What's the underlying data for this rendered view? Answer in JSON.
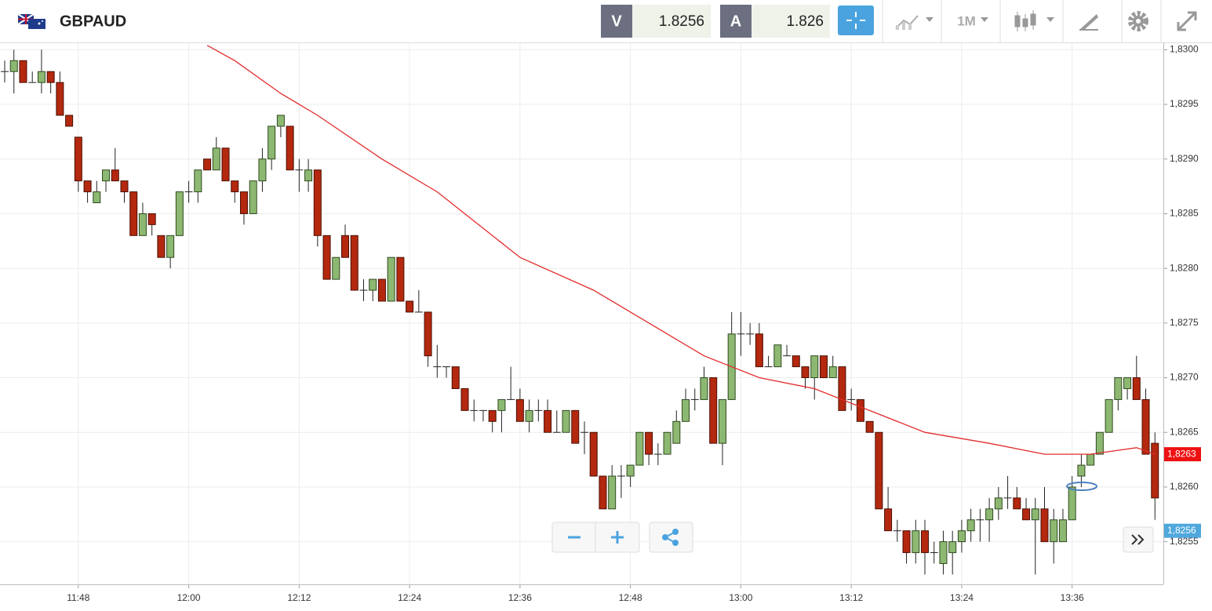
{
  "header": {
    "symbol": "GBPAUD",
    "bid_label": "V",
    "bid": 1.8256,
    "ask_label": "A",
    "ask": 1.826,
    "timeframe": "1M"
  },
  "chart_data": {
    "type": "candlestick",
    "x": [
      "11:40",
      "11:41",
      "11:42",
      "11:43",
      "11:44",
      "11:45",
      "11:46",
      "11:47",
      "11:48",
      "11:49",
      "11:50",
      "11:51",
      "11:52",
      "11:53",
      "11:54",
      "11:55",
      "11:56",
      "11:57",
      "11:58",
      "11:59",
      "12:00",
      "12:01",
      "12:02",
      "12:03",
      "12:04",
      "12:05",
      "12:06",
      "12:07",
      "12:08",
      "12:09",
      "12:10",
      "12:11",
      "12:12",
      "12:13",
      "12:14",
      "12:15",
      "12:16",
      "12:17",
      "12:18",
      "12:19",
      "12:20",
      "12:21",
      "12:22",
      "12:23",
      "12:24",
      "12:25",
      "12:26",
      "12:27",
      "12:28",
      "12:29",
      "12:30",
      "12:31",
      "12:32",
      "12:33",
      "12:34",
      "12:35",
      "12:36",
      "12:37",
      "12:38",
      "12:39",
      "12:40",
      "12:41",
      "12:42",
      "12:43",
      "12:44",
      "12:45",
      "12:46",
      "12:47",
      "12:48",
      "12:49",
      "12:50",
      "12:51",
      "12:52",
      "12:53",
      "12:54",
      "12:55",
      "12:56",
      "12:57",
      "12:58",
      "12:59",
      "13:00",
      "13:01",
      "13:02",
      "13:03",
      "13:04",
      "13:05",
      "13:06",
      "13:07",
      "13:08",
      "13:09",
      "13:10",
      "13:11",
      "13:12",
      "13:13",
      "13:14",
      "13:15",
      "13:16",
      "13:17",
      "13:18",
      "13:19",
      "13:20",
      "13:21",
      "13:22",
      "13:23",
      "13:24",
      "13:25",
      "13:26",
      "13:27",
      "13:28",
      "13:29",
      "13:30",
      "13:31",
      "13:32",
      "13:33",
      "13:34",
      "13:35",
      "13:36",
      "13:37",
      "13:38",
      "13:39",
      "13:40",
      "13:41",
      "13:42",
      "13:43",
      "13:44",
      "13:45"
    ],
    "ohlc": [
      [
        1.8298,
        1.8299,
        1.8297,
        1.8298
      ],
      [
        1.8298,
        1.83,
        1.8296,
        1.8299
      ],
      [
        1.8299,
        1.8299,
        1.8297,
        1.8297
      ],
      [
        1.8297,
        1.8298,
        1.8297,
        1.8297
      ],
      [
        1.8297,
        1.83,
        1.8296,
        1.8298
      ],
      [
        1.8298,
        1.8298,
        1.8296,
        1.8297
      ],
      [
        1.8297,
        1.8298,
        1.8294,
        1.8294
      ],
      [
        1.8294,
        1.8294,
        1.8293,
        1.8293
      ],
      [
        1.8292,
        1.8292,
        1.8287,
        1.8288
      ],
      [
        1.8288,
        1.8288,
        1.8286,
        1.8287
      ],
      [
        1.8286,
        1.8288,
        1.8286,
        1.8287
      ],
      [
        1.8288,
        1.8289,
        1.8287,
        1.8289
      ],
      [
        1.8289,
        1.8291,
        1.8288,
        1.8288
      ],
      [
        1.8288,
        1.8288,
        1.8286,
        1.8287
      ],
      [
        1.8287,
        1.8287,
        1.8283,
        1.8283
      ],
      [
        1.8283,
        1.8286,
        1.8283,
        1.8285
      ],
      [
        1.8285,
        1.8285,
        1.8283,
        1.8284
      ],
      [
        1.8283,
        1.8283,
        1.8281,
        1.8281
      ],
      [
        1.8281,
        1.8283,
        1.828,
        1.8283
      ],
      [
        1.8283,
        1.8287,
        1.8283,
        1.8287
      ],
      [
        1.8287,
        1.8288,
        1.8286,
        1.8287
      ],
      [
        1.8287,
        1.8289,
        1.8286,
        1.8289
      ],
      [
        1.829,
        1.829,
        1.8289,
        1.8289
      ],
      [
        1.8289,
        1.8292,
        1.8289,
        1.8291
      ],
      [
        1.8291,
        1.8291,
        1.8288,
        1.8288
      ],
      [
        1.8288,
        1.8288,
        1.8286,
        1.8287
      ],
      [
        1.8287,
        1.8287,
        1.8284,
        1.8285
      ],
      [
        1.8285,
        1.8288,
        1.8285,
        1.8288
      ],
      [
        1.8288,
        1.8291,
        1.8287,
        1.829
      ],
      [
        1.829,
        1.8293,
        1.8289,
        1.8293
      ],
      [
        1.8293,
        1.8294,
        1.8292,
        1.8294
      ],
      [
        1.8293,
        1.8293,
        1.8289,
        1.8289
      ],
      [
        1.8289,
        1.829,
        1.8287,
        1.8289
      ],
      [
        1.8288,
        1.829,
        1.8287,
        1.8289
      ],
      [
        1.8289,
        1.8289,
        1.8282,
        1.8283
      ],
      [
        1.8283,
        1.8283,
        1.8279,
        1.8279
      ],
      [
        1.8279,
        1.8281,
        1.8279,
        1.8281
      ],
      [
        1.8283,
        1.8284,
        1.8281,
        1.8281
      ],
      [
        1.8283,
        1.8283,
        1.8278,
        1.8278
      ],
      [
        1.8278,
        1.8279,
        1.8277,
        1.8278
      ],
      [
        1.8278,
        1.8279,
        1.8277,
        1.8279
      ],
      [
        1.8279,
        1.8279,
        1.8277,
        1.8277
      ],
      [
        1.8277,
        1.8281,
        1.8277,
        1.8281
      ],
      [
        1.8281,
        1.8281,
        1.8277,
        1.8277
      ],
      [
        1.8277,
        1.8277,
        1.8276,
        1.8276
      ],
      [
        1.8276,
        1.8278,
        1.8276,
        1.8276
      ],
      [
        1.8276,
        1.8276,
        1.8271,
        1.8272
      ],
      [
        1.8271,
        1.8273,
        1.827,
        1.8271
      ],
      [
        1.8271,
        1.8271,
        1.827,
        1.8271
      ],
      [
        1.8271,
        1.8271,
        1.8269,
        1.8269
      ],
      [
        1.8269,
        1.8269,
        1.8267,
        1.8267
      ],
      [
        1.8267,
        1.8268,
        1.8266,
        1.8267
      ],
      [
        1.8267,
        1.8267,
        1.8266,
        1.8267
      ],
      [
        1.8267,
        1.8267,
        1.8265,
        1.8266
      ],
      [
        1.8267,
        1.8268,
        1.8265,
        1.8268
      ],
      [
        1.8268,
        1.8271,
        1.8268,
        1.8268
      ],
      [
        1.8268,
        1.8269,
        1.8266,
        1.8266
      ],
      [
        1.8266,
        1.8268,
        1.8265,
        1.8267
      ],
      [
        1.8267,
        1.8268,
        1.8266,
        1.8267
      ],
      [
        1.8267,
        1.8268,
        1.8265,
        1.8265
      ],
      [
        1.8265,
        1.8267,
        1.8265,
        1.8265
      ],
      [
        1.8265,
        1.8267,
        1.8265,
        1.8267
      ],
      [
        1.8267,
        1.8267,
        1.8264,
        1.8264
      ],
      [
        1.8265,
        1.8266,
        1.8263,
        1.8265
      ],
      [
        1.8265,
        1.8265,
        1.8261,
        1.8261
      ],
      [
        1.8261,
        1.8261,
        1.8258,
        1.8258
      ],
      [
        1.8258,
        1.8262,
        1.8258,
        1.8261
      ],
      [
        1.8261,
        1.8262,
        1.8259,
        1.8261
      ],
      [
        1.8261,
        1.8262,
        1.826,
        1.8262
      ],
      [
        1.8262,
        1.8265,
        1.8262,
        1.8265
      ],
      [
        1.8265,
        1.8265,
        1.8262,
        1.8263
      ],
      [
        1.8263,
        1.8264,
        1.8262,
        1.8263
      ],
      [
        1.8263,
        1.8265,
        1.8263,
        1.8265
      ],
      [
        1.8264,
        1.8267,
        1.8264,
        1.8266
      ],
      [
        1.8266,
        1.8269,
        1.8266,
        1.8268
      ],
      [
        1.8268,
        1.8269,
        1.8267,
        1.8268
      ],
      [
        1.8268,
        1.8271,
        1.8268,
        1.827
      ],
      [
        1.827,
        1.827,
        1.8264,
        1.8264
      ],
      [
        1.8264,
        1.8268,
        1.8262,
        1.8268
      ],
      [
        1.8268,
        1.8276,
        1.8268,
        1.8274
      ],
      [
        1.8274,
        1.8276,
        1.8272,
        1.8274
      ],
      [
        1.8274,
        1.8275,
        1.8273,
        1.8274
      ],
      [
        1.8274,
        1.8275,
        1.8271,
        1.8271
      ],
      [
        1.8271,
        1.8272,
        1.8271,
        1.8271
      ],
      [
        1.8271,
        1.8273,
        1.8271,
        1.8273
      ],
      [
        1.8272,
        1.8273,
        1.8272,
        1.8272
      ],
      [
        1.8272,
        1.8272,
        1.8271,
        1.8271
      ],
      [
        1.8271,
        1.8271,
        1.8269,
        1.827
      ],
      [
        1.827,
        1.8272,
        1.8268,
        1.8272
      ],
      [
        1.8272,
        1.8272,
        1.827,
        1.827
      ],
      [
        1.827,
        1.8272,
        1.827,
        1.8271
      ],
      [
        1.8271,
        1.8271,
        1.8267,
        1.8267
      ],
      [
        1.8268,
        1.8269,
        1.8267,
        1.8268
      ],
      [
        1.8268,
        1.8268,
        1.8266,
        1.8266
      ],
      [
        1.8266,
        1.8266,
        1.8265,
        1.8265
      ],
      [
        1.8265,
        1.8265,
        1.8258,
        1.8258
      ],
      [
        1.8258,
        1.826,
        1.8256,
        1.8256
      ],
      [
        1.8256,
        1.8257,
        1.8255,
        1.8256
      ],
      [
        1.8256,
        1.8256,
        1.8253,
        1.8254
      ],
      [
        1.8254,
        1.8257,
        1.8253,
        1.8256
      ],
      [
        1.8256,
        1.8257,
        1.8252,
        1.8254
      ],
      [
        1.8254,
        1.8255,
        1.8253,
        1.8254
      ],
      [
        1.8253,
        1.8256,
        1.8252,
        1.8255
      ],
      [
        1.8254,
        1.8256,
        1.8252,
        1.8255
      ],
      [
        1.8255,
        1.8257,
        1.8254,
        1.8256
      ],
      [
        1.8256,
        1.8258,
        1.8255,
        1.8257
      ],
      [
        1.8257,
        1.8258,
        1.8255,
        1.8257
      ],
      [
        1.8257,
        1.8259,
        1.8255,
        1.8258
      ],
      [
        1.8258,
        1.826,
        1.8257,
        1.8259
      ],
      [
        1.8259,
        1.8261,
        1.8258,
        1.8259
      ],
      [
        1.8259,
        1.826,
        1.8258,
        1.8258
      ],
      [
        1.8258,
        1.8259,
        1.8257,
        1.8257
      ],
      [
        1.8257,
        1.8259,
        1.8252,
        1.8258
      ],
      [
        1.8258,
        1.826,
        1.8255,
        1.8255
      ],
      [
        1.8255,
        1.8258,
        1.8253,
        1.8257
      ],
      [
        1.8255,
        1.8258,
        1.8255,
        1.8257
      ],
      [
        1.8257,
        1.8261,
        1.8257,
        1.826
      ],
      [
        1.8261,
        1.8263,
        1.826,
        1.8262
      ],
      [
        1.8262,
        1.8263,
        1.8262,
        1.8263
      ],
      [
        1.8263,
        1.8265,
        1.8263,
        1.8265
      ],
      [
        1.8265,
        1.8268,
        1.8265,
        1.8268
      ],
      [
        1.8268,
        1.827,
        1.8267,
        1.827
      ],
      [
        1.8269,
        1.827,
        1.8268,
        1.827
      ],
      [
        1.827,
        1.8272,
        1.8268,
        1.8268
      ],
      [
        1.8268,
        1.8269,
        1.8263,
        1.8263
      ],
      [
        1.8264,
        1.8265,
        1.8257,
        1.8259
      ]
    ],
    "up_color": "#8db872",
    "down_color": "#b3280e",
    "moving_average": {
      "color": "#e32b2b",
      "x": [
        "12:02",
        "12:05",
        "12:10",
        "12:14",
        "12:21",
        "12:27",
        "12:36",
        "12:44",
        "12:50",
        "12:56",
        "13:02",
        "13:08",
        "13:14",
        "13:20",
        "13:27",
        "13:33",
        "13:38",
        "13:43",
        "13:45"
      ],
      "values": [
        1.83004,
        1.8299,
        1.8296,
        1.8294,
        1.829,
        1.8287,
        1.8281,
        1.8278,
        1.8275,
        1.8272,
        1.827,
        1.8269,
        1.8267,
        1.8265,
        1.8264,
        1.8263,
        1.8263,
        1.82636,
        1.8263
      ]
    },
    "ylim": [
      1.82511,
      1.83006
    ],
    "yticks": [
      {
        "value": 1.8255,
        "label": "1,8255"
      },
      {
        "value": 1.826,
        "label": "1,8260"
      },
      {
        "value": 1.8265,
        "label": "1,8265"
      },
      {
        "value": 1.827,
        "label": "1,8270"
      },
      {
        "value": 1.8275,
        "label": "1,8275"
      },
      {
        "value": 1.828,
        "label": "1,8280"
      },
      {
        "value": 1.8285,
        "label": "1,8285"
      },
      {
        "value": 1.829,
        "label": "1,8290"
      },
      {
        "value": 1.8295,
        "label": "1,8295"
      },
      {
        "value": 1.83,
        "label": "1,8300"
      }
    ],
    "xticks": [
      "11:48",
      "12:00",
      "12:12",
      "12:24",
      "12:36",
      "12:48",
      "13:00",
      "13:12",
      "13:24",
      "13:36"
    ],
    "grid": true,
    "price_badges": [
      {
        "value": 1.8263,
        "label": "1,8263",
        "color": "#ee1111"
      },
      {
        "value": 1.8256,
        "label": "1,8256",
        "color": "#4fa8dc"
      }
    ]
  }
}
